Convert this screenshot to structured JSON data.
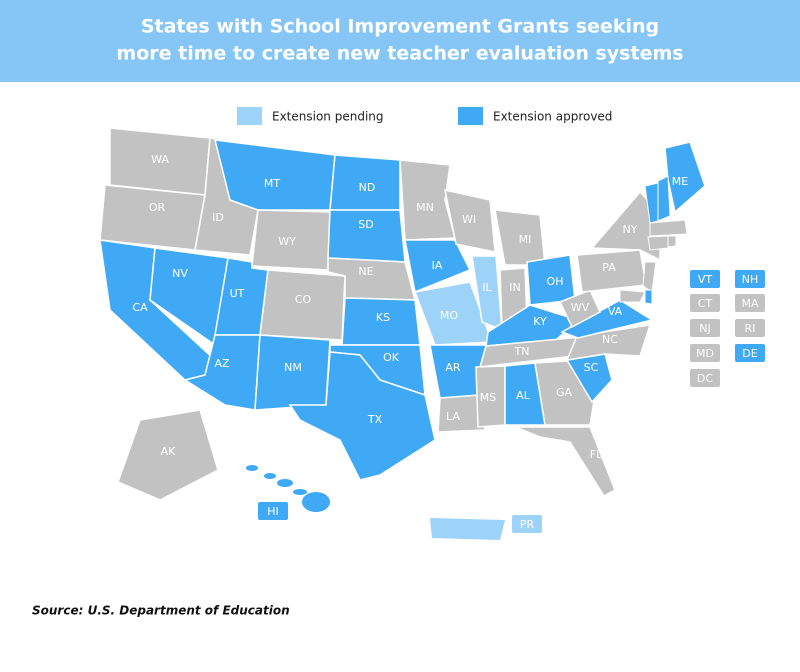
{
  "title": "States with School Improvement Grants seeking more time to create new teacher evaluation systems",
  "legend": [
    {
      "label": "Extension pending",
      "color": "#9dd3f9"
    },
    {
      "label": "Extension approved",
      "color": "#3fa9f5"
    }
  ],
  "states": [
    {
      "label": "WA",
      "color": "#c2c2c2"
    },
    {
      "label": "OR",
      "color": "#c2c2c2"
    },
    {
      "label": "CA",
      "color": "#3fa9f5"
    },
    {
      "label": "NV",
      "color": "#3fa9f5"
    },
    {
      "label": "ID",
      "color": "#c2c2c2"
    },
    {
      "label": "MT",
      "color": "#3fa9f5"
    },
    {
      "label": "WY",
      "color": "#c2c2c2"
    },
    {
      "label": "UT",
      "color": "#3fa9f5"
    },
    {
      "label": "AZ",
      "color": "#3fa9f5"
    },
    {
      "label": "CO",
      "color": "#c2c2c2"
    },
    {
      "label": "NM",
      "color": "#3fa9f5"
    },
    {
      "label": "ND",
      "color": "#3fa9f5"
    },
    {
      "label": "SD",
      "color": "#3fa9f5"
    },
    {
      "label": "NE",
      "color": "#c2c2c2"
    },
    {
      "label": "KS",
      "color": "#3fa9f5"
    },
    {
      "label": "OK",
      "color": "#3fa9f5"
    },
    {
      "label": "TX",
      "color": "#3fa9f5"
    },
    {
      "label": "MN",
      "color": "#c2c2c2"
    },
    {
      "label": "IA",
      "color": "#3fa9f5"
    },
    {
      "label": "MO",
      "color": "#9dd3f9"
    },
    {
      "label": "AR",
      "color": "#3fa9f5"
    },
    {
      "label": "LA",
      "color": "#c2c2c2"
    },
    {
      "label": "WI",
      "color": "#c2c2c2"
    },
    {
      "label": "IL",
      "color": "#9dd3f9"
    },
    {
      "label": "MI",
      "color": "#c2c2c2"
    },
    {
      "label": "IN",
      "color": "#c2c2c2"
    },
    {
      "label": "OH",
      "color": "#3fa9f5"
    },
    {
      "label": "KY",
      "color": "#3fa9f5"
    },
    {
      "label": "TN",
      "color": "#c2c2c2"
    },
    {
      "label": "MS",
      "color": "#c2c2c2"
    },
    {
      "label": "AL",
      "color": "#3fa9f5"
    },
    {
      "label": "GA",
      "color": "#c2c2c2"
    },
    {
      "label": "FL",
      "color": "#c2c2c2"
    },
    {
      "label": "SC",
      "color": "#3fa9f5"
    },
    {
      "label": "NC",
      "color": "#c2c2c2"
    },
    {
      "label": "VA",
      "color": "#3fa9f5"
    },
    {
      "label": "WV",
      "color": "#c2c2c2"
    },
    {
      "label": "PA",
      "color": "#c2c2c2"
    },
    {
      "label": "NY",
      "color": "#c2c2c2"
    },
    {
      "label": "ME",
      "color": "#3fa9f5"
    },
    {
      "label": "AK",
      "color": "#c2c2c2"
    }
  ],
  "boxed_labels": [
    {
      "label": "VT",
      "color": "#3fa9f5"
    },
    {
      "label": "NH",
      "color": "#3fa9f5"
    },
    {
      "label": "CT",
      "color": "#c2c2c2"
    },
    {
      "label": "MA",
      "color": "#c2c2c2"
    },
    {
      "label": "NJ",
      "color": "#c2c2c2"
    },
    {
      "label": "RI",
      "color": "#c2c2c2"
    },
    {
      "label": "MD",
      "color": "#c2c2c2"
    },
    {
      "label": "DE",
      "color": "#3fa9f5"
    },
    {
      "label": "DC",
      "color": "#c2c2c2"
    },
    {
      "label": "HI",
      "color": "#3fa9f5"
    },
    {
      "label": "PR",
      "color": "#9dd3f9"
    }
  ],
  "source": "Source: U.S. Department of Education"
}
